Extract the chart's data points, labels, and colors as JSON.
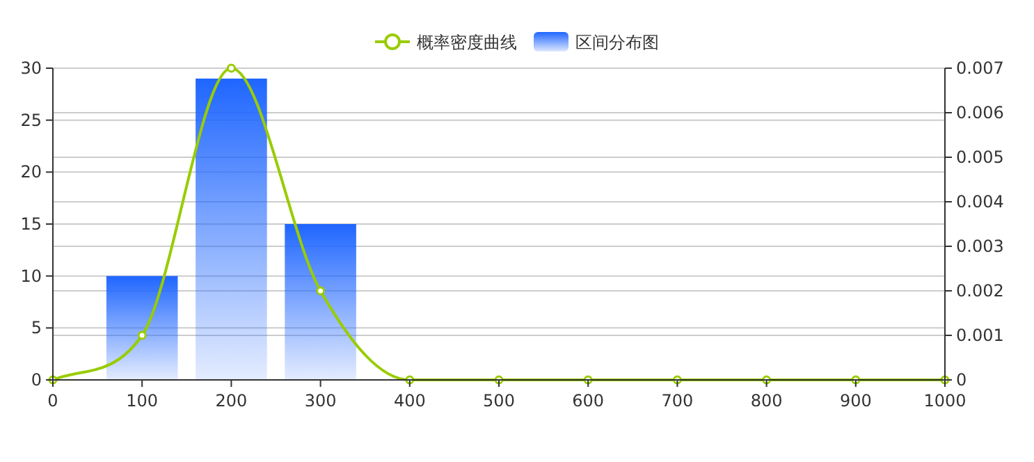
{
  "chart_data": {
    "type": "bar",
    "grid": "y",
    "legend": "top",
    "marker": "circle",
    "series": [
      {
        "name": "概率密度曲线",
        "type": "line",
        "axis": "y2",
        "color": "#99cc00",
        "x": [
          0,
          100,
          200,
          300,
          400,
          500,
          600,
          700,
          800,
          900,
          1000
        ],
        "values": [
          0,
          0.001,
          0.007,
          0.002,
          0,
          0,
          0,
          0,
          0,
          0,
          0
        ]
      },
      {
        "name": "区间分布图",
        "color": "#1f66ff",
        "x": [
          100,
          200,
          300
        ],
        "values": [
          10,
          29,
          15
        ]
      }
    ],
    "xlim": [
      0,
      1000
    ],
    "xticks": [
      0,
      100,
      200,
      300,
      400,
      500,
      600,
      700,
      800,
      900,
      1000
    ],
    "ylim": [
      0,
      30
    ],
    "yticks": [
      0,
      5,
      10,
      15,
      20,
      25,
      30
    ],
    "y2lim": [
      0,
      0.007
    ],
    "y2ticks": [
      0,
      0.001,
      0.002,
      0.003,
      0.004,
      0.005,
      0.006,
      0.007
    ]
  }
}
